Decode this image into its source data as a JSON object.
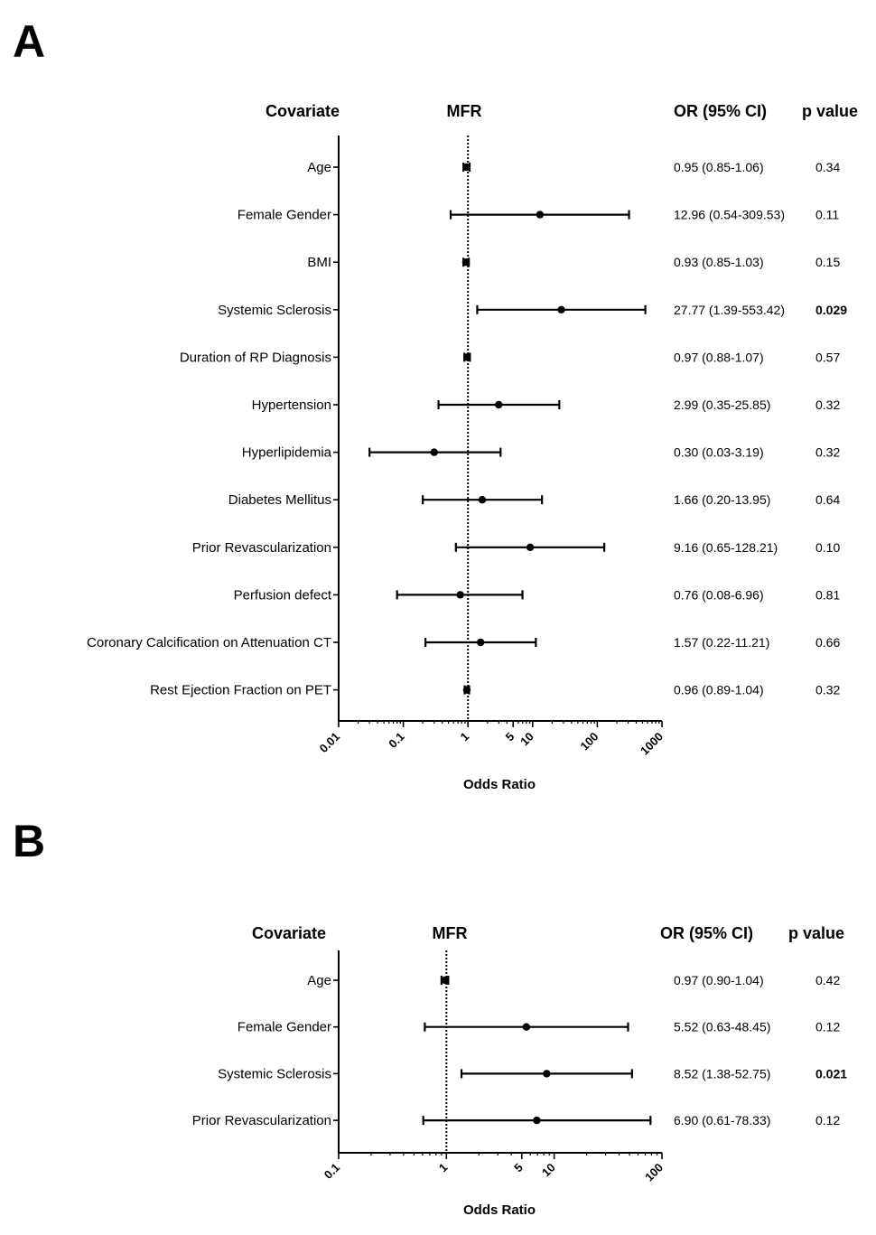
{
  "chart_data": [
    {
      "type": "forest",
      "panel": "A",
      "headers": {
        "covariate": "Covariate",
        "plot": "MFR",
        "or": "OR (95% CI)",
        "p": "p value"
      },
      "xlabel": "Odds Ratio",
      "xscale": "log",
      "xlim": [
        0.01,
        1000
      ],
      "reference_line": 1,
      "tick_labels": [
        "0.01",
        "0.1",
        "1",
        "5",
        "10",
        "100",
        "1000"
      ],
      "tick_values": [
        0.01,
        0.1,
        1,
        5,
        10,
        100,
        1000
      ],
      "rows": [
        {
          "label": "Age",
          "or": 0.95,
          "lo": 0.85,
          "hi": 1.06,
          "or_text": "0.95 (0.85-1.06)",
          "p": "0.34",
          "sig": false
        },
        {
          "label": "Female Gender",
          "or": 12.96,
          "lo": 0.54,
          "hi": 309.53,
          "or_text": "12.96 (0.54-309.53)",
          "p": "0.11",
          "sig": false
        },
        {
          "label": "BMI",
          "or": 0.93,
          "lo": 0.85,
          "hi": 1.03,
          "or_text": "0.93 (0.85-1.03)",
          "p": "0.15",
          "sig": false
        },
        {
          "label": "Systemic Sclerosis",
          "or": 27.77,
          "lo": 1.39,
          "hi": 553.42,
          "or_text": "27.77 (1.39-553.42)",
          "p": "0.029",
          "sig": true
        },
        {
          "label": "Duration of RP Diagnosis",
          "or": 0.97,
          "lo": 0.88,
          "hi": 1.07,
          "or_text": "0.97 (0.88-1.07)",
          "p": "0.57",
          "sig": false
        },
        {
          "label": "Hypertension",
          "or": 2.99,
          "lo": 0.35,
          "hi": 25.85,
          "or_text": "2.99 (0.35-25.85)",
          "p": "0.32",
          "sig": false
        },
        {
          "label": "Hyperlipidemia",
          "or": 0.3,
          "lo": 0.03,
          "hi": 3.19,
          "or_text": "0.30 (0.03-3.19)",
          "p": "0.32",
          "sig": false
        },
        {
          "label": "Diabetes Mellitus",
          "or": 1.66,
          "lo": 0.2,
          "hi": 13.95,
          "or_text": "1.66 (0.20-13.95)",
          "p": "0.64",
          "sig": false
        },
        {
          "label": "Prior Revascularization",
          "or": 9.16,
          "lo": 0.65,
          "hi": 128.21,
          "or_text": "9.16 (0.65-128.21)",
          "p": "0.10",
          "sig": false
        },
        {
          "label": "Perfusion defect",
          "or": 0.76,
          "lo": 0.08,
          "hi": 6.96,
          "or_text": "0.76 (0.08-6.96)",
          "p": "0.81",
          "sig": false
        },
        {
          "label": "Coronary Calcification on Attenuation CT",
          "or": 1.57,
          "lo": 0.22,
          "hi": 11.21,
          "or_text": "1.57 (0.22-11.21)",
          "p": "0.66",
          "sig": false
        },
        {
          "label": "Rest Ejection Fraction on PET",
          "or": 0.96,
          "lo": 0.89,
          "hi": 1.04,
          "or_text": "0.96 (0.89-1.04)",
          "p": "0.32",
          "sig": false
        }
      ]
    },
    {
      "type": "forest",
      "panel": "B",
      "headers": {
        "covariate": "Covariate",
        "plot": "MFR",
        "or": "OR (95% CI)",
        "p": "p value"
      },
      "xlabel": "Odds Ratio",
      "xscale": "log",
      "xlim": [
        0.1,
        100
      ],
      "reference_line": 1,
      "tick_labels": [
        "0.1",
        "1",
        "5",
        "10",
        "100"
      ],
      "tick_values": [
        0.1,
        1,
        5,
        10,
        100
      ],
      "rows": [
        {
          "label": "Age",
          "or": 0.97,
          "lo": 0.9,
          "hi": 1.04,
          "or_text": "0.97 (0.90-1.04)",
          "p": "0.42",
          "sig": false
        },
        {
          "label": "Female Gender",
          "or": 5.52,
          "lo": 0.63,
          "hi": 48.45,
          "or_text": "5.52 (0.63-48.45)",
          "p": "0.12",
          "sig": false
        },
        {
          "label": "Systemic Sclerosis",
          "or": 8.52,
          "lo": 1.38,
          "hi": 52.75,
          "or_text": "8.52 (1.38-52.75)",
          "p": "0.021",
          "sig": true
        },
        {
          "label": "Prior Revascularization",
          "or": 6.9,
          "lo": 0.61,
          "hi": 78.33,
          "or_text": "6.90 (0.61-78.33)",
          "p": "0.12",
          "sig": false
        }
      ]
    }
  ]
}
